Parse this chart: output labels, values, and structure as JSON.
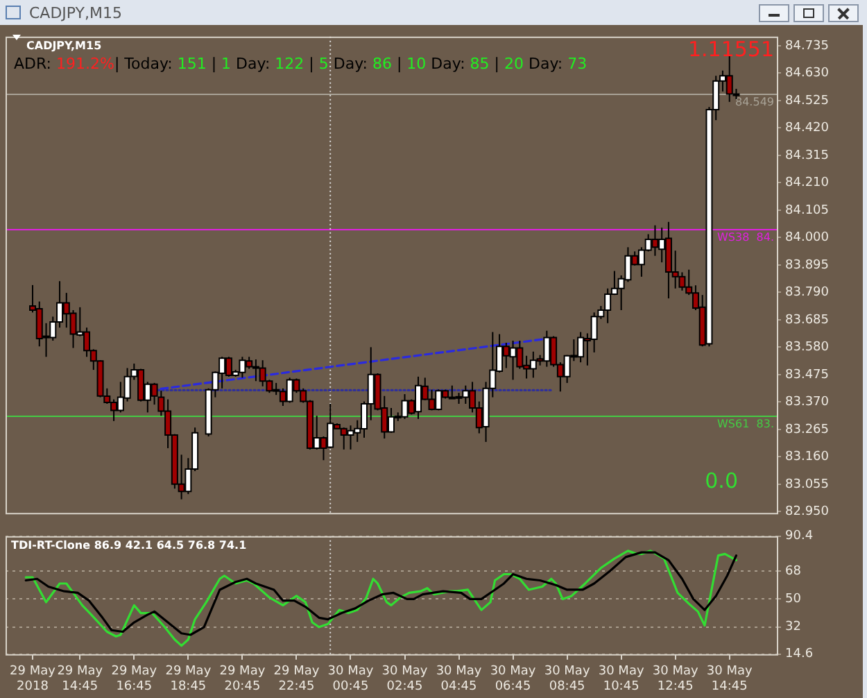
{
  "chart_data": [
    {
      "type": "candlestick",
      "title": "CADJPY,M15",
      "annotations": [
        "ADR: 191.2%| Today: 151 | 1 Day: 122 | 5 Day: 86 | 10 Day: 85 | 20 Day: 73",
        "1.11551",
        "0.0"
      ],
      "x": [
        "2018-05-29T13:00",
        "2018-05-29T13:15",
        "2018-05-29T13:30",
        "2018-05-29T13:45",
        "2018-05-29T14:00",
        "2018-05-29T14:15",
        "2018-05-29T14:30",
        "2018-05-29T14:45",
        "2018-05-29T15:00",
        "2018-05-29T15:15",
        "2018-05-29T15:30",
        "2018-05-29T15:45",
        "2018-05-29T16:00",
        "2018-05-29T16:15",
        "2018-05-29T16:30",
        "2018-05-29T16:45",
        "2018-05-29T17:00",
        "2018-05-29T17:15",
        "2018-05-29T17:30",
        "2018-05-29T17:45",
        "2018-05-29T18:00",
        "2018-05-29T18:15",
        "2018-05-29T18:30",
        "2018-05-29T18:45",
        "2018-05-29T19:00",
        "2018-05-29T19:30",
        "2018-05-29T19:45",
        "2018-05-29T20:00",
        "2018-05-29T20:15",
        "2018-05-29T20:30",
        "2018-05-29T20:45",
        "2018-05-29T21:00",
        "2018-05-29T21:15",
        "2018-05-29T21:30",
        "2018-05-29T21:45",
        "2018-05-29T22:00",
        "2018-05-29T22:15",
        "2018-05-29T22:30",
        "2018-05-29T22:45",
        "2018-05-29T23:00",
        "2018-05-29T23:15",
        "2018-05-29T23:30",
        "2018-05-29T23:45",
        "2018-05-30T00:00",
        "2018-05-30T00:15",
        "2018-05-30T00:30",
        "2018-05-30T00:45",
        "2018-05-30T01:00",
        "2018-05-30T01:15",
        "2018-05-30T01:30",
        "2018-05-30T01:45",
        "2018-05-30T02:00",
        "2018-05-30T02:15",
        "2018-05-30T02:30",
        "2018-05-30T02:45",
        "2018-05-30T03:00",
        "2018-05-30T03:15",
        "2018-05-30T03:30",
        "2018-05-30T03:45",
        "2018-05-30T04:00",
        "2018-05-30T04:15",
        "2018-05-30T04:30",
        "2018-05-30T04:45",
        "2018-05-30T05:00",
        "2018-05-30T05:15",
        "2018-05-30T05:30",
        "2018-05-30T05:45",
        "2018-05-30T06:00",
        "2018-05-30T06:15",
        "2018-05-30T06:30",
        "2018-05-30T06:45",
        "2018-05-30T07:00",
        "2018-05-30T07:15",
        "2018-05-30T07:30",
        "2018-05-30T07:45",
        "2018-05-30T08:00",
        "2018-05-30T08:15",
        "2018-05-30T08:30",
        "2018-05-30T08:45",
        "2018-05-30T09:00",
        "2018-05-30T09:15",
        "2018-05-30T09:30",
        "2018-05-30T09:45",
        "2018-05-30T10:00",
        "2018-05-30T10:15",
        "2018-05-30T10:30",
        "2018-05-30T10:45",
        "2018-05-30T11:00",
        "2018-05-30T11:15",
        "2018-05-30T11:30",
        "2018-05-30T11:45",
        "2018-05-30T12:00",
        "2018-05-30T12:15",
        "2018-05-30T12:30",
        "2018-05-30T12:45",
        "2018-05-30T13:00",
        "2018-05-30T13:15",
        "2018-05-30T13:30",
        "2018-05-30T13:45",
        "2018-05-30T14:00",
        "2018-05-30T14:15",
        "2018-05-30T14:30",
        "2018-05-30T14:45",
        "2018-05-30T15:00"
      ],
      "ohlc": [
        [
          83.738,
          83.818,
          83.713,
          83.722
        ],
        [
          83.727,
          83.755,
          83.583,
          83.613
        ],
        [
          83.622,
          83.672,
          83.543,
          83.617
        ],
        [
          83.617,
          83.697,
          83.605,
          83.677
        ],
        [
          83.677,
          83.833,
          83.655,
          83.75
        ],
        [
          83.75,
          83.788,
          83.655,
          83.708
        ],
        [
          83.71,
          83.722,
          83.577,
          83.63
        ],
        [
          83.627,
          83.733,
          83.622,
          83.638
        ],
        [
          83.638,
          83.655,
          83.543,
          83.567
        ],
        [
          83.567,
          83.572,
          83.493,
          83.527
        ],
        [
          83.527,
          83.53,
          83.388,
          83.393
        ],
        [
          83.392,
          83.422,
          83.363,
          83.368
        ],
        [
          83.368,
          83.38,
          83.297,
          83.338
        ],
        [
          83.338,
          83.447,
          83.33,
          83.388
        ],
        [
          83.385,
          83.5,
          83.372,
          83.467
        ],
        [
          83.468,
          83.517,
          83.455,
          83.493
        ],
        [
          83.493,
          83.497,
          83.372,
          83.377
        ],
        [
          83.377,
          83.447,
          83.33,
          83.438
        ],
        [
          83.438,
          83.443,
          83.36,
          83.393
        ],
        [
          83.388,
          83.413,
          83.317,
          83.335
        ],
        [
          83.335,
          83.38,
          83.193,
          83.243
        ],
        [
          83.243,
          83.247,
          83.038,
          83.055
        ],
        [
          83.055,
          83.168,
          82.997,
          83.027
        ],
        [
          83.027,
          83.155,
          83.017,
          83.113
        ],
        [
          83.113,
          83.272,
          83.105,
          83.252
        ],
        [
          83.247,
          83.422,
          83.238,
          83.417
        ],
        [
          83.417,
          83.487,
          83.388,
          83.483
        ],
        [
          83.48,
          83.543,
          83.422,
          83.538
        ],
        [
          83.538,
          83.543,
          83.467,
          83.472
        ],
        [
          83.472,
          83.493,
          83.467,
          83.485
        ],
        [
          83.483,
          83.543,
          83.463,
          83.53
        ],
        [
          83.527,
          83.543,
          83.497,
          83.505
        ],
        [
          83.505,
          83.533,
          83.45,
          83.503
        ],
        [
          83.5,
          83.53,
          83.43,
          83.45
        ],
        [
          83.45,
          83.455,
          83.405,
          83.413
        ],
        [
          83.417,
          83.443,
          83.397,
          83.415
        ],
        [
          83.41,
          83.422,
          83.355,
          83.372
        ],
        [
          83.372,
          83.463,
          83.367,
          83.455
        ],
        [
          83.455,
          83.46,
          83.405,
          83.413
        ],
        [
          83.413,
          83.422,
          83.367,
          83.372
        ],
        [
          83.372,
          83.377,
          83.188,
          83.193
        ],
        [
          83.193,
          83.317,
          83.188,
          83.233
        ],
        [
          83.233,
          83.238,
          83.147,
          83.193
        ],
        [
          83.197,
          83.363,
          83.193,
          83.288
        ],
        [
          83.283,
          83.288,
          83.267,
          83.268
        ],
        [
          83.268,
          83.272,
          83.188,
          83.243
        ],
        [
          83.243,
          83.28,
          83.188,
          83.26
        ],
        [
          83.252,
          83.3,
          83.217,
          83.268
        ],
        [
          83.267,
          83.372,
          83.233,
          83.363
        ],
        [
          83.363,
          83.58,
          83.3,
          83.475
        ],
        [
          83.475,
          83.48,
          83.338,
          83.343
        ],
        [
          83.347,
          83.393,
          83.23,
          83.255
        ],
        [
          83.255,
          83.347,
          83.252,
          83.313
        ],
        [
          83.313,
          83.33,
          83.297,
          83.315
        ],
        [
          83.313,
          83.4,
          83.305,
          83.375
        ],
        [
          83.375,
          83.38,
          83.322,
          83.327
        ],
        [
          83.333,
          83.467,
          83.305,
          83.433
        ],
        [
          83.43,
          83.463,
          83.377,
          83.38
        ],
        [
          83.38,
          83.417,
          83.338,
          83.342
        ],
        [
          83.342,
          83.418,
          83.338,
          83.413
        ],
        [
          83.413,
          83.417,
          83.383,
          83.388
        ],
        [
          83.388,
          83.433,
          83.383,
          83.385
        ],
        [
          83.388,
          83.405,
          83.363,
          83.39
        ],
        [
          83.388,
          83.433,
          83.363,
          83.413
        ],
        [
          83.413,
          83.447,
          83.33,
          83.347
        ],
        [
          83.347,
          83.372,
          83.25,
          83.272
        ],
        [
          83.275,
          83.447,
          83.217,
          83.422
        ],
        [
          83.422,
          83.638,
          83.388,
          83.492
        ],
        [
          83.488,
          83.63,
          83.483,
          83.583
        ],
        [
          83.583,
          83.597,
          83.5,
          83.547
        ],
        [
          83.543,
          83.605,
          83.455,
          83.577
        ],
        [
          83.577,
          83.605,
          83.497,
          83.505
        ],
        [
          83.51,
          83.547,
          83.46,
          83.497
        ],
        [
          83.497,
          83.563,
          83.463,
          83.53
        ],
        [
          83.535,
          83.55,
          83.51,
          83.527
        ],
        [
          83.527,
          83.643,
          83.505,
          83.617
        ],
        [
          83.617,
          83.622,
          83.505,
          83.513
        ],
        [
          83.513,
          83.522,
          83.41,
          83.467
        ],
        [
          83.467,
          83.55,
          83.443,
          83.547
        ],
        [
          83.547,
          83.61,
          83.527,
          83.548
        ],
        [
          83.543,
          83.638,
          83.522,
          83.617
        ],
        [
          83.613,
          83.633,
          83.51,
          83.605
        ],
        [
          83.61,
          83.713,
          83.56,
          83.697
        ],
        [
          83.697,
          83.738,
          83.688,
          83.722
        ],
        [
          83.722,
          83.805,
          83.672,
          83.783
        ],
        [
          83.783,
          83.872,
          83.78,
          83.805
        ],
        [
          83.805,
          83.855,
          83.722,
          83.842
        ],
        [
          83.838,
          83.963,
          83.83,
          83.93
        ],
        [
          83.93,
          83.947,
          83.893,
          83.897
        ],
        [
          83.897,
          83.963,
          83.85,
          83.952
        ],
        [
          83.952,
          84.013,
          83.947,
          83.993
        ],
        [
          83.993,
          84.047,
          83.93,
          83.963
        ],
        [
          83.955,
          84.038,
          83.905,
          83.993
        ],
        [
          83.997,
          84.06,
          83.767,
          83.868
        ],
        [
          83.868,
          83.95,
          83.805,
          83.85
        ],
        [
          83.85,
          83.867,
          83.797,
          83.81
        ],
        [
          83.81,
          83.877,
          83.78,
          83.788
        ],
        [
          83.788,
          83.817,
          83.722,
          83.73
        ],
        [
          83.733,
          83.78,
          83.583,
          83.588
        ],
        [
          83.593,
          84.5,
          83.583,
          84.49
        ],
        [
          84.49,
          84.62,
          84.45,
          84.6
        ],
        [
          84.6,
          84.64,
          84.56,
          84.62
        ],
        [
          84.62,
          84.7,
          84.52,
          84.55
        ],
        [
          84.55,
          84.57,
          84.53,
          84.549
        ]
      ],
      "series": [
        {
          "type": "line",
          "color": "#2a2ae0",
          "line_style": "dashed",
          "x": [
            "2018-05-29T17:20",
            "2018-05-30T07:50"
          ],
          "values": [
            83.415,
            83.61
          ]
        },
        {
          "type": "line",
          "color": "#30309a",
          "line_style": "dotted",
          "x": [
            "2018-05-29T17:20",
            "2018-05-30T08:10"
          ],
          "values": [
            83.415,
            83.415
          ]
        }
      ],
      "xlim": [
        "2018-05-29T12:00",
        "2018-05-30T16:30"
      ],
      "ylim": [
        82.945,
        84.77
      ],
      "yticks": [
        {
          "value": 82.95,
          "label": "82.950"
        },
        83.055,
        {
          "value": 83.16,
          "label": "83.160"
        },
        83.265,
        {
          "value": 83.37,
          "label": "83.370"
        },
        83.475,
        {
          "value": 83.58,
          "label": "83.580"
        },
        83.685,
        {
          "value": 83.79,
          "label": "83.790"
        },
        83.895,
        {
          "value": 84,
          "label": "84.000"
        },
        84.105,
        {
          "value": 84.21,
          "label": "84.210"
        },
        84.315,
        {
          "value": 84.42,
          "label": "84.420"
        },
        84.525,
        {
          "value": 84.63,
          "label": "84.630"
        },
        84.735
      ],
      "ref_lines": [
        {
          "axis": "y",
          "value": 84.03,
          "label": "WS38  84.",
          "color": "#e020e0"
        },
        {
          "axis": "y",
          "value": 83.315,
          "label": "WS61  83.",
          "color": "#44cc44"
        },
        {
          "axis": "y",
          "value": 84.549,
          "label": "84.549",
          "color": "#a8a296"
        },
        {
          "axis": "x",
          "value": "2018-05-30T00:00",
          "color": "#dedede",
          "line_style": "dotted"
        }
      ],
      "tick_labels": "y",
      "legend": false,
      "grid": false
    },
    {
      "type": "line",
      "title": "TDI-RT-Clone 86.9 42.1 64.5 76.8 74.1",
      "series": [
        {
          "color": "#000000",
          "x": [
            "2018-05-29T12:45",
            "2018-05-29T13:10",
            "2018-05-29T13:35",
            "2018-05-29T14:10",
            "2018-05-29T14:40",
            "2018-05-29T15:05",
            "2018-05-29T15:35",
            "2018-05-29T15:55",
            "2018-05-29T16:20",
            "2018-05-29T16:45",
            "2018-05-29T17:15",
            "2018-05-29T17:30",
            "2018-05-29T18:00",
            "2018-05-29T18:30",
            "2018-05-29T18:50",
            "2018-05-29T19:20",
            "2018-05-29T19:55",
            "2018-05-29T20:30",
            "2018-05-29T20:55",
            "2018-05-29T21:15",
            "2018-05-29T21:55",
            "2018-05-29T22:15",
            "2018-05-29T22:40",
            "2018-05-29T23:05",
            "2018-05-29T23:35",
            "2018-05-29T23:55",
            "2018-05-30T00:25",
            "2018-05-30T00:55",
            "2018-05-30T01:25",
            "2018-05-30T01:55",
            "2018-05-30T02:20",
            "2018-05-30T02:50",
            "2018-05-30T03:05",
            "2018-05-30T03:25",
            "2018-05-30T04:10",
            "2018-05-30T04:50",
            "2018-05-30T05:10",
            "2018-05-30T05:35",
            "2018-05-30T06:00",
            "2018-05-30T06:25",
            "2018-05-30T06:45",
            "2018-05-30T07:15",
            "2018-05-30T07:45",
            "2018-05-30T08:20",
            "2018-05-30T08:45",
            "2018-05-30T09:20",
            "2018-05-30T09:45",
            "2018-05-30T10:20",
            "2018-05-30T10:55",
            "2018-05-30T11:30",
            "2018-05-30T12:00",
            "2018-05-30T12:30",
            "2018-05-30T13:00",
            "2018-05-30T13:25",
            "2018-05-30T13:50",
            "2018-05-30T14:15",
            "2018-05-30T14:40",
            "2018-05-30T15:00"
          ],
          "values": [
            62,
            63,
            58,
            55,
            54,
            49,
            38,
            30,
            29,
            35,
            40,
            42,
            35,
            28,
            27,
            32,
            56,
            61,
            63,
            60,
            56,
            49,
            49,
            45,
            38,
            37,
            41,
            44,
            49,
            53,
            54,
            50,
            50,
            53,
            55,
            54,
            50,
            50,
            55,
            60,
            66,
            63,
            62,
            59,
            56,
            56,
            60,
            68,
            77,
            80,
            80,
            75,
            63,
            50,
            43,
            52,
            65,
            78
          ]
        },
        {
          "color": "#33dd33",
          "x": [
            "2018-05-29T12:45",
            "2018-05-29T13:00",
            "2018-05-29T13:30",
            "2018-05-29T13:45",
            "2018-05-29T14:00",
            "2018-05-29T14:15",
            "2018-05-29T14:35",
            "2018-05-29T14:50",
            "2018-05-29T15:10",
            "2018-05-29T15:45",
            "2018-05-29T16:05",
            "2018-05-29T16:15",
            "2018-05-29T16:45",
            "2018-05-29T17:00",
            "2018-05-29T17:25",
            "2018-05-29T17:50",
            "2018-05-29T18:15",
            "2018-05-29T18:30",
            "2018-05-29T18:45",
            "2018-05-29T19:00",
            "2018-05-29T19:25",
            "2018-05-29T19:55",
            "2018-05-29T20:05",
            "2018-05-29T20:30",
            "2018-05-29T20:55",
            "2018-05-29T21:10",
            "2018-05-29T21:45",
            "2018-05-29T22:15",
            "2018-05-29T22:45",
            "2018-05-29T23:05",
            "2018-05-29T23:20",
            "2018-05-29T23:35",
            "2018-05-29T23:55",
            "2018-05-30T00:20",
            "2018-05-30T00:40",
            "2018-05-30T01:00",
            "2018-05-30T01:20",
            "2018-05-30T01:35",
            "2018-05-30T01:45",
            "2018-05-30T02:05",
            "2018-05-30T02:15",
            "2018-05-30T02:35",
            "2018-05-30T02:55",
            "2018-05-30T03:20",
            "2018-05-30T03:35",
            "2018-05-30T03:50",
            "2018-05-30T04:25",
            "2018-05-30T04:40",
            "2018-05-30T05:05",
            "2018-05-30T05:35",
            "2018-05-30T05:55",
            "2018-05-30T06:05",
            "2018-05-30T06:25",
            "2018-05-30T06:40",
            "2018-05-30T07:00",
            "2018-05-30T07:20",
            "2018-05-30T07:50",
            "2018-05-30T08:10",
            "2018-05-30T08:20",
            "2018-05-30T08:35",
            "2018-05-30T08:55",
            "2018-05-30T09:25",
            "2018-05-30T10:00",
            "2018-05-30T10:30",
            "2018-05-30T11:00",
            "2018-05-30T11:20",
            "2018-05-30T11:30",
            "2018-05-30T11:50",
            "2018-05-30T12:20",
            "2018-05-30T12:50",
            "2018-05-30T13:15",
            "2018-05-30T13:35",
            "2018-05-30T13:50",
            "2018-05-30T14:20",
            "2018-05-30T14:35",
            "2018-05-30T15:00"
          ],
          "values": [
            64,
            64,
            48,
            54,
            60,
            60,
            52,
            46,
            40,
            29,
            26,
            27,
            46,
            41,
            41,
            33,
            24,
            20,
            24,
            37,
            48,
            63,
            65,
            60,
            62,
            60,
            51,
            46,
            52,
            48,
            35,
            32,
            34,
            43,
            41,
            43,
            51,
            63,
            60,
            48,
            46,
            51,
            54,
            55,
            57,
            53,
            55,
            55,
            56,
            43,
            48,
            62,
            66,
            66,
            63,
            56,
            58,
            63,
            60,
            50,
            52,
            60,
            70,
            76,
            81,
            79,
            79,
            81,
            76,
            54,
            47,
            42,
            33,
            78,
            79,
            75
          ]
        }
      ],
      "xlim": [
        "2018-05-29T12:00",
        "2018-05-30T16:30"
      ],
      "ylim": [
        14.6,
        90.4
      ],
      "xticks": [
        {
          "value": "2018-05-29T13:00",
          "label": "29 May 2018"
        },
        {
          "value": "2018-05-29T14:45",
          "label": "29 May 14:45"
        },
        {
          "value": "2018-05-29T16:45",
          "label": "29 May 16:45"
        },
        {
          "value": "2018-05-29T18:45",
          "label": "29 May 18:45"
        },
        {
          "value": "2018-05-29T20:45",
          "label": "29 May 20:45"
        },
        {
          "value": "2018-05-29T22:45",
          "label": "29 May 22:45"
        },
        {
          "value": "2018-05-30T00:45",
          "label": "30 May 00:45"
        },
        {
          "value": "2018-05-30T02:45",
          "label": "30 May 02:45"
        },
        {
          "value": "2018-05-30T04:45",
          "label": "30 May 04:45"
        },
        {
          "value": "2018-05-30T06:45",
          "label": "30 May 06:45"
        },
        {
          "value": "2018-05-30T08:45",
          "label": "30 May 08:45"
        },
        {
          "value": "2018-05-30T10:45",
          "label": "30 May 10:45"
        },
        {
          "value": "2018-05-30T12:45",
          "label": "30 May 12:45"
        },
        {
          "value": "2018-05-30T14:45",
          "label": "30 May 14:45"
        }
      ],
      "yticks": [
        14.6,
        32,
        50,
        68,
        90.4
      ],
      "ref_lines": [
        {
          "axis": "x",
          "value": "2018-05-30T00:00",
          "color": "#dedede",
          "line_style": "dotted"
        }
      ],
      "grid": "y",
      "legend": false
    }
  ]
}
